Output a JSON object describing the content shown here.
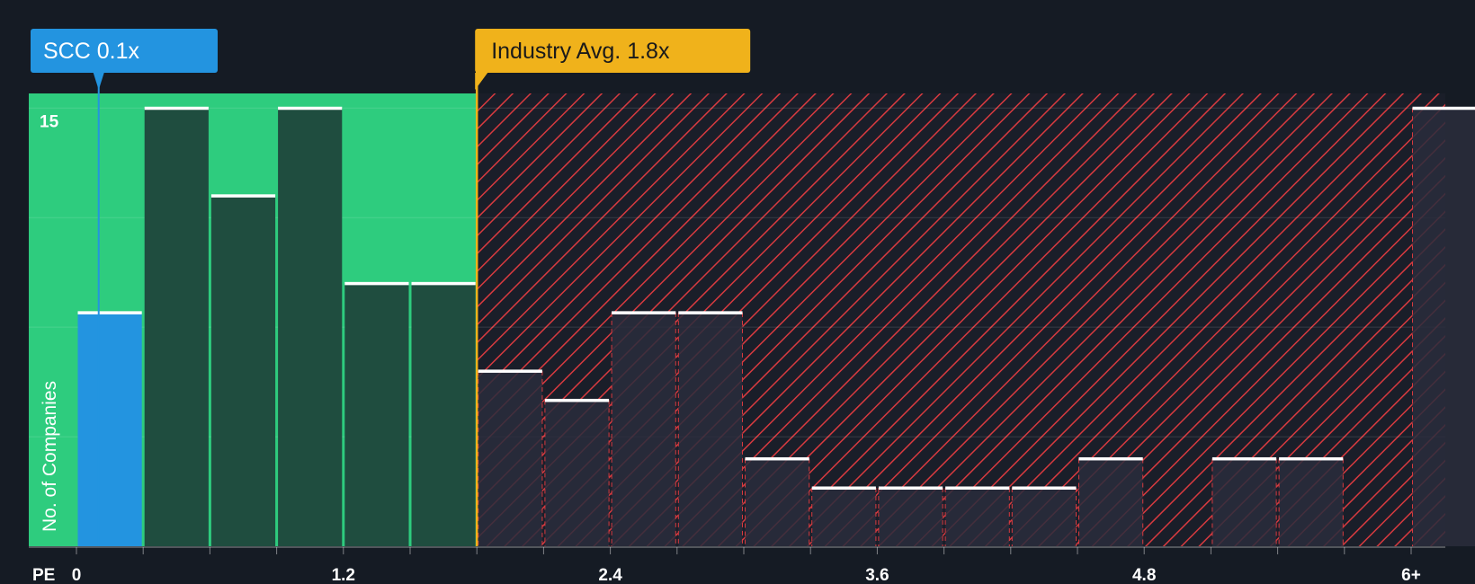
{
  "chart_data": {
    "type": "bar",
    "xlabel": "PE",
    "ylabel": "No. of Companies",
    "x_ticks": [
      "0",
      "1.2",
      "2.4",
      "3.6",
      "4.8",
      "6+"
    ],
    "x_tick_values": [
      0,
      1.2,
      2.4,
      3.6,
      4.8,
      6
    ],
    "y_ticks": [
      "15"
    ],
    "y_tick_values": [
      15
    ],
    "xlim": [
      -0.2,
      6.15
    ],
    "ylim": [
      0,
      15.5
    ],
    "bin_width": 0.3,
    "bins": [
      {
        "start": 0.0,
        "value": 8
      },
      {
        "start": 0.3,
        "value": 15
      },
      {
        "start": 0.6,
        "value": 12
      },
      {
        "start": 0.9,
        "value": 15
      },
      {
        "start": 1.2,
        "value": 9
      },
      {
        "start": 1.5,
        "value": 9
      },
      {
        "start": 1.8,
        "value": 6
      },
      {
        "start": 2.1,
        "value": 5
      },
      {
        "start": 2.4,
        "value": 8
      },
      {
        "start": 2.7,
        "value": 8
      },
      {
        "start": 3.0,
        "value": 3
      },
      {
        "start": 3.3,
        "value": 2
      },
      {
        "start": 3.6,
        "value": 2
      },
      {
        "start": 3.9,
        "value": 2
      },
      {
        "start": 4.2,
        "value": 2
      },
      {
        "start": 4.5,
        "value": 3
      },
      {
        "start": 4.8,
        "value": 0
      },
      {
        "start": 5.1,
        "value": 3
      },
      {
        "start": 5.4,
        "value": 3
      },
      {
        "start": 5.7,
        "value": 0
      },
      {
        "start": 6.0,
        "value": 15
      }
    ],
    "company": {
      "label": "SCC 0.1x",
      "value": 0.1
    },
    "industry_avg": {
      "label": "Industry Avg. 1.8x",
      "value": 1.8
    },
    "grid": true,
    "colors": {
      "background": "#151b24",
      "undervalued_zone": "#2ecc7e",
      "company_bar": "#2394e0",
      "green_bar": "#1f4d3f",
      "dark_bar": "#2a2d3c",
      "hatch": "#d83a3f",
      "industry": "#f0b21b",
      "bar_top": "#ffffff"
    }
  }
}
